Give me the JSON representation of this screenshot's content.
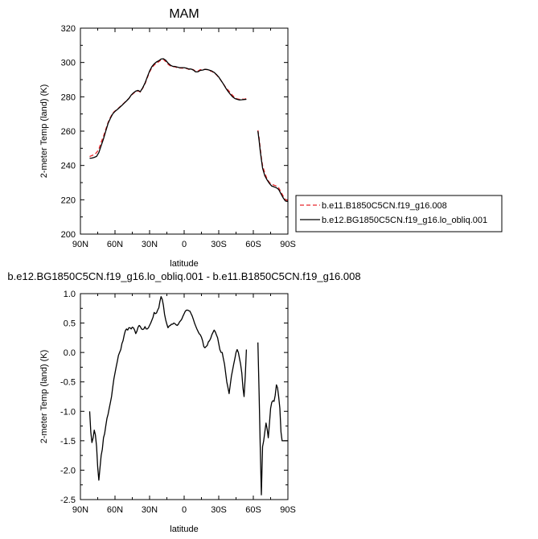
{
  "chart_data": [
    {
      "type": "line",
      "title": "MAM",
      "xlabel": "latitude",
      "ylabel": "2-meter Temp (land) (K)",
      "xlim": [
        90,
        -90
      ],
      "ylim": [
        200,
        320
      ],
      "x_tick_values": [
        90,
        60,
        30,
        0,
        -30,
        -60,
        -90
      ],
      "x_tick_labels": [
        "90N",
        "60N",
        "30N",
        "0",
        "30S",
        "60S",
        "90S"
      ],
      "y_tick_values": [
        200,
        220,
        240,
        260,
        280,
        300,
        320
      ],
      "y_tick_labels": [
        "200",
        "220",
        "240",
        "260",
        "280",
        "300",
        "320"
      ],
      "legend_position": "right",
      "series": [
        {
          "name": "b.e11.B1850C5CN.f19_g16.008",
          "color": "#e8262a",
          "dash": "dashed",
          "segments": [
            {
              "x": [
                82,
                80,
                78,
                76,
                74,
                72,
                70,
                68,
                66,
                64,
                62,
                60,
                58,
                56,
                54,
                52,
                50,
                48,
                46,
                44,
                42,
                40,
                38,
                36,
                34,
                32,
                30,
                28,
                26,
                24,
                22,
                20,
                18,
                16,
                14,
                12,
                10,
                8,
                6,
                4,
                2,
                0,
                -2,
                -4,
                -6,
                -8,
                -10,
                -12,
                -14,
                -16,
                -18,
                -20,
                -22,
                -24,
                -26,
                -28,
                -30,
                -32,
                -34,
                -36,
                -38,
                -40,
                -42,
                -44,
                -46,
                -48,
                -50,
                -52,
                -54
              ],
              "y": [
                245.2,
                245.8,
                246.2,
                247.5,
                249.5,
                253.5,
                257,
                261,
                265,
                268,
                270.5,
                271.7,
                272.8,
                274,
                275.2,
                276.5,
                277.8,
                279,
                280.8,
                282,
                283,
                283.5,
                282.8,
                285,
                287.5,
                291,
                294.5,
                297,
                298.5,
                299.5,
                300.5,
                301.5,
                301.8,
                300.5,
                299,
                298,
                297.5,
                297.5,
                297,
                296.8,
                296.7,
                296.8,
                296.5,
                296,
                296.2,
                295.8,
                294.8,
                295,
                295.8,
                295.8,
                296,
                295.8,
                295.2,
                294.8,
                294,
                292.8,
                291.3,
                289.5,
                287.5,
                285.5,
                284,
                282.5,
                280.8,
                279.5,
                278.8,
                278.5,
                278.8,
                278.5,
                279
              ]
            },
            {
              "x": [
                -64,
                -65,
                -66,
                -67,
                -68,
                -70,
                -72,
                -74,
                -76,
                -78,
                -80,
                -82,
                -84,
                -86,
                -88,
                -90
              ],
              "y": [
                260.5,
                256,
                250,
                244.5,
                240,
                235.5,
                232,
                230,
                229,
                228.5,
                228,
                227,
                224.5,
                222,
                220,
                219.5
              ]
            }
          ]
        },
        {
          "name": "b.e12.BG1850C5CN.f19_g16.lo_obliq.001",
          "color": "#000000",
          "dash": "solid",
          "segments": [
            {
              "x": [
                82,
                80,
                78,
                76,
                74,
                72,
                70,
                68,
                66,
                64,
                62,
                60,
                58,
                56,
                54,
                52,
                50,
                48,
                46,
                44,
                42,
                40,
                38,
                36,
                34,
                32,
                30,
                28,
                26,
                24,
                22,
                20,
                18,
                16,
                14,
                12,
                10,
                8,
                6,
                4,
                2,
                0,
                -2,
                -4,
                -6,
                -8,
                -10,
                -12,
                -14,
                -16,
                -18,
                -20,
                -22,
                -24,
                -26,
                -28,
                -30,
                -32,
                -34,
                -36,
                -38,
                -40,
                -42,
                -44,
                -46,
                -48,
                -50,
                -52,
                -54
              ],
              "y": [
                244.2,
                244.3,
                244.7,
                245.3,
                247.5,
                251.5,
                255.5,
                260,
                264.5,
                267.5,
                270,
                271.5,
                272.6,
                273.8,
                275,
                276.3,
                277.6,
                279,
                281,
                282.3,
                283.3,
                283.7,
                283,
                285.2,
                288,
                291.5,
                295,
                297.6,
                299.2,
                300.3,
                301,
                302,
                302.2,
                301.3,
                299.7,
                298.5,
                297.8,
                297.7,
                297.3,
                297,
                297,
                297,
                296.7,
                296.2,
                296.2,
                295.6,
                294.5,
                294.6,
                295.4,
                295.6,
                296,
                295.9,
                295.5,
                295,
                294.2,
                293,
                291.5,
                289.5,
                287.5,
                285.2,
                283.2,
                281.5,
                280,
                279,
                278.5,
                278.2,
                278.3,
                278.4,
                278.5
              ]
            },
            {
              "x": [
                -64,
                -65,
                -66,
                -67,
                -68,
                -70,
                -72,
                -74,
                -76,
                -78,
                -80,
                -82,
                -84,
                -86,
                -88,
                -90
              ],
              "y": [
                260,
                254.5,
                248.5,
                243.5,
                238.5,
                234,
                231.5,
                229.5,
                228,
                227.5,
                227,
                226,
                223.5,
                221,
                219.2,
                219
              ]
            }
          ]
        }
      ]
    },
    {
      "type": "line",
      "title": "b.e12.BG1850C5CN.f19_g16.lo_obliq.001 - b.e11.B1850C5CN.f19_g16.008",
      "xlabel": "latitude",
      "ylabel": "2-meter Temp (land) (K)",
      "xlim": [
        90,
        -90
      ],
      "ylim": [
        -2.5,
        1.0
      ],
      "x_tick_values": [
        90,
        60,
        30,
        0,
        -30,
        -60,
        -90
      ],
      "x_tick_labels": [
        "90N",
        "60N",
        "30N",
        "0",
        "30S",
        "60S",
        "90S"
      ],
      "y_tick_values": [
        -2.5,
        -2.0,
        -1.5,
        -1.0,
        -0.5,
        0.0,
        0.5,
        1.0
      ],
      "y_tick_labels": [
        "-2.5",
        "-2.0",
        "-1.5",
        "-1.0",
        "-0.5",
        "0.0",
        "0.5",
        "1.0"
      ],
      "series": [
        {
          "color": "#000000",
          "dash": "solid",
          "segments": [
            {
              "x": [
                82,
                81,
                80,
                79,
                78,
                77,
                76,
                75,
                74,
                73,
                72,
                71,
                70,
                69,
                68,
                67,
                66,
                65,
                64,
                63,
                62,
                61,
                60,
                59,
                58,
                57,
                56,
                55,
                54,
                53,
                52,
                51,
                50,
                49,
                48,
                47,
                46,
                45,
                44,
                43,
                42,
                41,
                40,
                39,
                38,
                37,
                36,
                35,
                34,
                33,
                32,
                31,
                30,
                29,
                28,
                27,
                26,
                25,
                24,
                23,
                22,
                21,
                20,
                19,
                18,
                17,
                16,
                15,
                14,
                13,
                12,
                11,
                10,
                9,
                8,
                7,
                6,
                5,
                4,
                3,
                2,
                1,
                0,
                -1,
                -2,
                -3,
                -4,
                -5,
                -6,
                -7,
                -8,
                -9,
                -10,
                -11,
                -12,
                -13,
                -14,
                -15,
                -16,
                -17,
                -18,
                -19,
                -20,
                -21,
                -22,
                -23,
                -24,
                -25,
                -26,
                -27,
                -28,
                -29,
                -30,
                -31,
                -32,
                -33,
                -34,
                -35,
                -36,
                -37,
                -38,
                -39,
                -40,
                -41,
                -42,
                -43,
                -44,
                -45,
                -46,
                -47,
                -48,
                -49,
                -50,
                -51,
                -52,
                -53,
                -54
              ],
              "y": [
                -1.0,
                -1.35,
                -1.53,
                -1.45,
                -1.32,
                -1.4,
                -1.6,
                -1.95,
                -2.17,
                -1.95,
                -1.75,
                -1.65,
                -1.45,
                -1.38,
                -1.25,
                -1.12,
                -1.05,
                -0.95,
                -0.85,
                -0.75,
                -0.6,
                -0.45,
                -0.35,
                -0.25,
                -0.15,
                -0.05,
                0.0,
                0.05,
                0.15,
                0.2,
                0.3,
                0.37,
                0.4,
                0.38,
                0.42,
                0.42,
                0.4,
                0.43,
                0.42,
                0.38,
                0.32,
                0.36,
                0.43,
                0.46,
                0.44,
                0.4,
                0.39,
                0.4,
                0.44,
                0.4,
                0.4,
                0.42,
                0.46,
                0.5,
                0.55,
                0.6,
                0.68,
                0.66,
                0.67,
                0.72,
                0.76,
                0.87,
                0.95,
                0.9,
                0.8,
                0.65,
                0.55,
                0.48,
                0.42,
                0.45,
                0.46,
                0.48,
                0.48,
                0.5,
                0.49,
                0.47,
                0.46,
                0.48,
                0.52,
                0.54,
                0.57,
                0.62,
                0.66,
                0.7,
                0.72,
                0.72,
                0.71,
                0.7,
                0.66,
                0.62,
                0.56,
                0.5,
                0.45,
                0.4,
                0.36,
                0.32,
                0.3,
                0.26,
                0.2,
                0.1,
                0.08,
                0.1,
                0.12,
                0.18,
                0.2,
                0.24,
                0.3,
                0.34,
                0.38,
                0.35,
                0.3,
                0.25,
                0.15,
                0.05,
                0.0,
                0.0,
                -0.1,
                -0.2,
                -0.35,
                -0.5,
                -0.6,
                -0.7,
                -0.55,
                -0.4,
                -0.3,
                -0.2,
                -0.1,
                0.0,
                0.05,
                0.0,
                -0.1,
                -0.2,
                -0.35,
                -0.6,
                -0.75,
                -0.4,
                0.05
              ]
            },
            {
              "x": [
                -64,
                -65,
                -66,
                -67,
                -68,
                -69,
                -70,
                -71,
                -72,
                -73,
                -74,
                -75,
                -76,
                -77,
                -78,
                -79,
                -80,
                -81,
                -82,
                -83,
                -84,
                -85,
                -86,
                -87,
                -88,
                -89,
                -90
              ],
              "y": [
                0.17,
                -0.7,
                -1.6,
                -2.42,
                -1.6,
                -1.5,
                -1.35,
                -1.2,
                -1.3,
                -1.45,
                -1.2,
                -0.95,
                -0.85,
                -0.82,
                -0.83,
                -0.73,
                -0.55,
                -0.6,
                -0.75,
                -0.95,
                -1.35,
                -1.5,
                -1.5,
                -1.5,
                -1.5,
                -1.5,
                -1.5
              ]
            }
          ]
        }
      ]
    }
  ]
}
